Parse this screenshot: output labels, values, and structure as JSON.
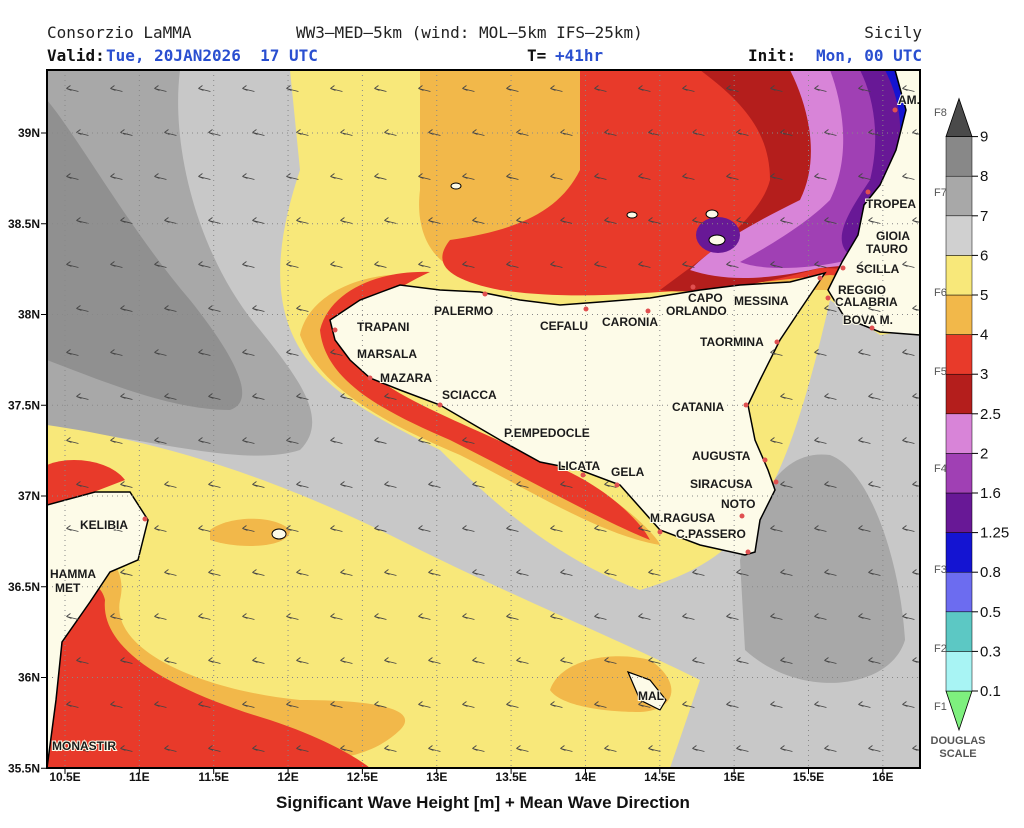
{
  "header": {
    "source": "Consorzio LaMMA",
    "model": "WW3–MED–5km (wind: MOL–5km IFS–25km)",
    "region": "Sicily",
    "valid_label": "Valid:",
    "valid": "Tue, 20JAN2026  17 UTC",
    "t_label": "T=",
    "t": "+41hr",
    "init_label": "Init:",
    "init": "Mon, 00 UTC"
  },
  "axes": {
    "xticks": [
      {
        "value": 10.5,
        "label": "10.5E"
      },
      {
        "value": 11,
        "label": "11E"
      },
      {
        "value": 11.5,
        "label": "11.5E"
      },
      {
        "value": 12,
        "label": "12E"
      },
      {
        "value": 12.5,
        "label": "12.5E"
      },
      {
        "value": 13,
        "label": "13E"
      },
      {
        "value": 13.5,
        "label": "13.5E"
      },
      {
        "value": 14,
        "label": "14E"
      },
      {
        "value": 14.5,
        "label": "14.5E"
      },
      {
        "value": 15,
        "label": "15E"
      },
      {
        "value": 15.5,
        "label": "15.5E"
      },
      {
        "value": 16,
        "label": "16E"
      }
    ],
    "yticks": [
      {
        "value": 39,
        "label": "39N"
      },
      {
        "value": 38.5,
        "label": "38.5N"
      },
      {
        "value": 38,
        "label": "38N"
      },
      {
        "value": 37.5,
        "label": "37.5N"
      },
      {
        "value": 37,
        "label": "37N"
      },
      {
        "value": 36.5,
        "label": "36.5N"
      },
      {
        "value": 36,
        "label": "36N"
      },
      {
        "value": 35.5,
        "label": "35.5N"
      }
    ]
  },
  "places": [
    "AM.",
    "TROPEA",
    "GIOIA",
    "TAURO",
    "SCILLA",
    "REGGIO",
    "CALABRIA",
    "BOVA M.",
    "MESSINA",
    "CAPO",
    "ORLANDO",
    "CARONIA",
    "CEFALU",
    "PALERMO",
    "TRAPANI",
    "MARSALA",
    "MAZARA",
    "SCIACCA",
    "P.EMPEDOCLE",
    "LICATA",
    "GELA",
    "AUGUSTA",
    "SIRACUSA",
    "NOTO",
    "M.RAGUSA",
    "C.PASSERO",
    "TAORMINA",
    "CATANIA",
    "KELIBIA",
    "HAMMA",
    "MET",
    "MONASTIR",
    "MAL"
  ],
  "colorbar": {
    "levels": [
      0.1,
      0.3,
      0.5,
      0.8,
      1.25,
      1.6,
      2,
      2.5,
      3,
      4,
      5,
      6,
      7,
      8,
      9
    ],
    "colors": [
      "#7ef07e",
      "#a8f4f4",
      "#5cc8c4",
      "#6c6cf0",
      "#1414d2",
      "#681896",
      "#a040b4",
      "#d884d8",
      "#b41e1c",
      "#e83a2a",
      "#f2b84a",
      "#f8e87a",
      "#d0d0d0",
      "#a8a8a8",
      "#888888",
      "#4a4a4a"
    ],
    "douglas": [
      "F1",
      "F2",
      "F3",
      "F4",
      "F5",
      "F6",
      "F7",
      "F8"
    ],
    "scale_label": [
      "DOUGLAS",
      "SCALE"
    ]
  },
  "footer": "Significant Wave Height [m] + Mean Wave Direction"
}
